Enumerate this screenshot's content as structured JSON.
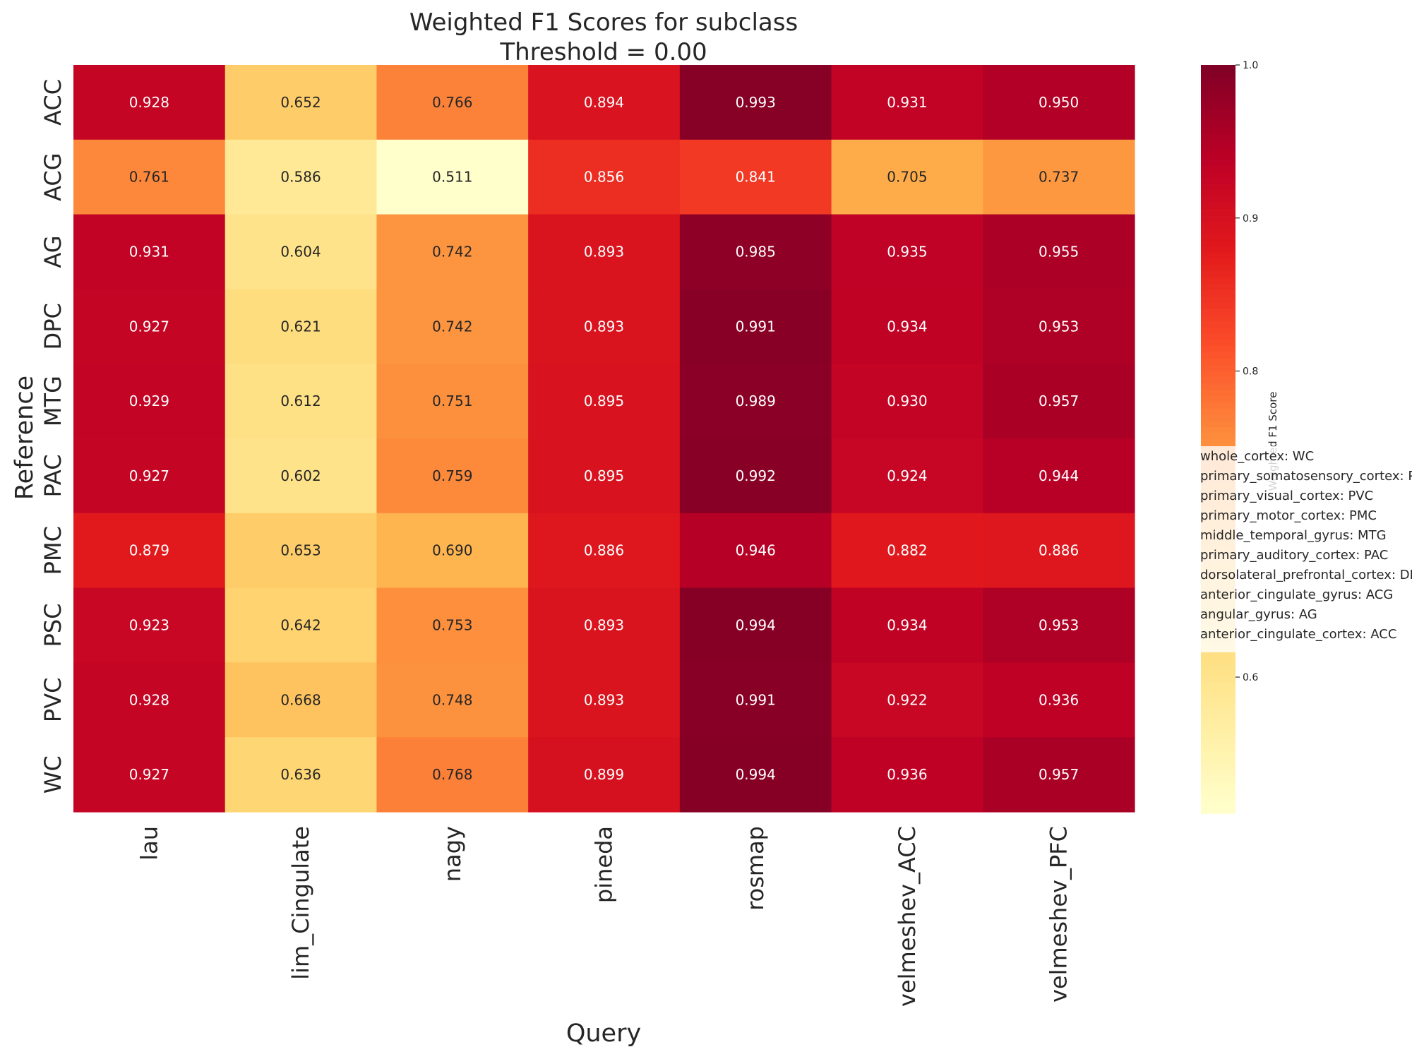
{
  "chart_data": {
    "type": "heatmap",
    "title_line1": "Weighted F1 Scores for subclass",
    "title_line2": "Threshold = 0.00",
    "xlabel": "Query",
    "ylabel": "Reference",
    "x_categories": [
      "lau",
      "lim_Cingulate",
      "nagy",
      "pineda",
      "rosmap",
      "velmeshev_ACC",
      "velmeshev_PFC"
    ],
    "y_categories": [
      "ACC",
      "ACG",
      "AG",
      "DPC",
      "MTG",
      "PAC",
      "PMC",
      "PSC",
      "PVC",
      "WC"
    ],
    "values": [
      [
        0.928,
        0.652,
        0.766,
        0.894,
        0.993,
        0.931,
        0.95
      ],
      [
        0.761,
        0.586,
        0.511,
        0.856,
        0.841,
        0.705,
        0.737
      ],
      [
        0.931,
        0.604,
        0.742,
        0.893,
        0.985,
        0.935,
        0.955
      ],
      [
        0.927,
        0.621,
        0.742,
        0.893,
        0.991,
        0.934,
        0.953
      ],
      [
        0.929,
        0.612,
        0.751,
        0.895,
        0.989,
        0.93,
        0.957
      ],
      [
        0.927,
        0.602,
        0.759,
        0.895,
        0.992,
        0.924,
        0.944
      ],
      [
        0.879,
        0.653,
        0.69,
        0.886,
        0.946,
        0.882,
        0.886
      ],
      [
        0.923,
        0.642,
        0.753,
        0.893,
        0.994,
        0.934,
        0.953
      ],
      [
        0.928,
        0.668,
        0.748,
        0.893,
        0.991,
        0.922,
        0.936
      ],
      [
        0.927,
        0.636,
        0.768,
        0.899,
        0.994,
        0.936,
        0.957
      ]
    ],
    "value_format": "3 decimals",
    "colormap": "YlOrRd",
    "color_range": [
      0.511,
      1.0
    ],
    "colorbar": {
      "label": "Weighted F1 Score",
      "ticks": [
        "0.6",
        "0.8",
        "0.9",
        "1.0"
      ],
      "tick_values": [
        0.6,
        0.8,
        0.9,
        1.0
      ]
    },
    "legend": {
      "placement": "right, overlapping colorbar",
      "entries": [
        "whole_cortex: WC",
        "primary_somatosensory_cortex: PSC",
        "primary_visual_cortex: PVC",
        "primary_motor_cortex: PMC",
        "middle_temporal_gyrus: MTG",
        "primary_auditory_cortex: PAC",
        "dorsolateral_prefrontal_cortex: DPC",
        "anterior_cingulate_gyrus: ACG",
        "angular_gyrus: AG",
        "anterior_cingulate_cortex: ACC"
      ]
    },
    "grid": false
  }
}
